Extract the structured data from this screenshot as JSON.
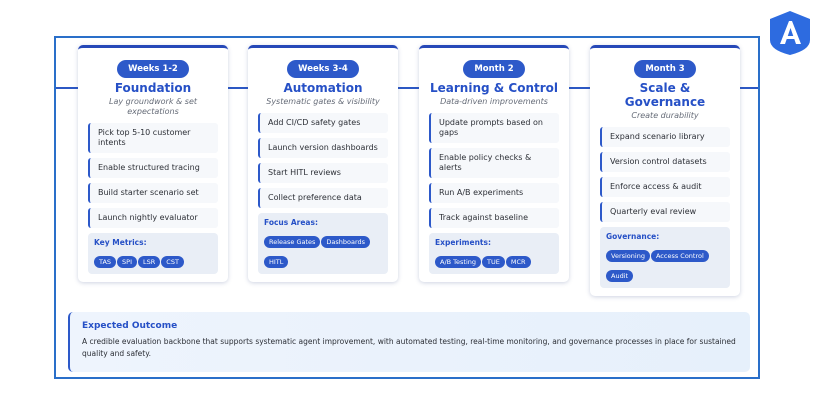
{
  "colors": {
    "accent": "#2d59c9",
    "frame": "#2a6fc9"
  },
  "logo": {
    "icon": "brand-logo-a",
    "text": "A"
  },
  "phases": [
    {
      "badge": "Weeks 1-2",
      "title": "Foundation",
      "subtitle": "Lay groundwork & set expectations",
      "items": [
        "Pick top 5-10 customer intents",
        "Enable structured tracing",
        "Build starter scenario set",
        "Launch nightly evaluator"
      ],
      "focus_label": "Key Metrics:",
      "tags": [
        "TAS",
        "SPI",
        "LSR",
        "CST"
      ]
    },
    {
      "badge": "Weeks 3-4",
      "title": "Automation",
      "subtitle": "Systematic gates & visibility",
      "items": [
        "Add CI/CD safety gates",
        "Launch version dashboards",
        "Start HITL reviews",
        "Collect preference data"
      ],
      "focus_label": "Focus Areas:",
      "tags": [
        "Release Gates",
        "Dashboards",
        "HITL"
      ]
    },
    {
      "badge": "Month 2",
      "title": "Learning & Control",
      "subtitle": "Data-driven improvements",
      "items": [
        "Update prompts based on gaps",
        "Enable policy checks & alerts",
        "Run A/B experiments",
        "Track against baseline"
      ],
      "focus_label": "Experiments:",
      "tags": [
        "A/B Testing",
        "TUE",
        "MCR"
      ]
    },
    {
      "badge": "Month 3",
      "title": "Scale & Governance",
      "subtitle": "Create durability",
      "items": [
        "Expand scenario library",
        "Version control datasets",
        "Enforce access & audit",
        "Quarterly eval review"
      ],
      "focus_label": "Governance:",
      "tags": [
        "Versioning",
        "Access Control",
        "Audit"
      ]
    }
  ],
  "outcome": {
    "title": "Expected Outcome",
    "text": "A credible evaluation backbone that supports systematic agent improvement, with automated testing, real-time monitoring, and governance processes in place for sustained quality and safety."
  }
}
